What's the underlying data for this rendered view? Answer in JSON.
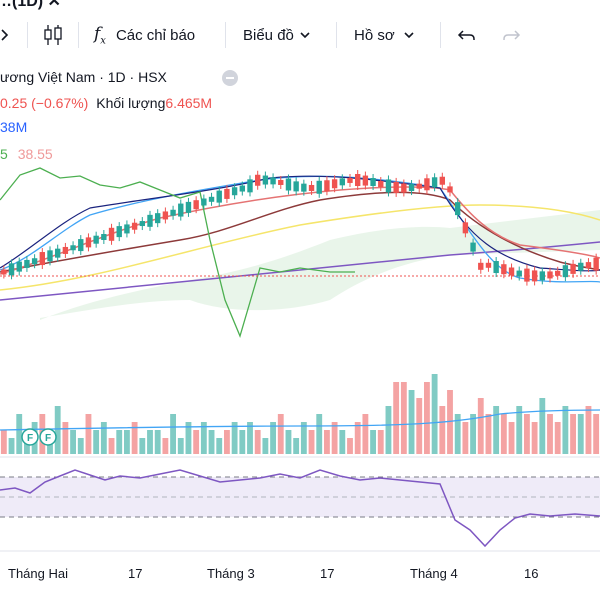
{
  "toolbar": {
    "top_partial": "…(1D) ✕",
    "indicators_label": "Các chỉ báo",
    "chart_label": "Biểu đồ",
    "profile_label": "Hồ sơ",
    "icons": [
      "chevron-right-icon",
      "candlestick-icon",
      "fx-icon",
      "chevron-down-icon",
      "undo-icon",
      "redo-icon"
    ]
  },
  "symbol": {
    "title": "ương Việt Nam · 1D · HSX",
    "change": "0.25 (−0.67%)",
    "volume_label": "Khối lượng",
    "volume_value": "6.465M",
    "volume_ma": "38M",
    "ind_prefix": "5",
    "ind_value": "38.55"
  },
  "xaxis": {
    "labels": [
      "Tháng Hai",
      "17",
      "Tháng 3",
      "17",
      "Tháng 4",
      "16"
    ]
  },
  "colors": {
    "up": "#26a69a",
    "down": "#ef5350",
    "ichimoku": "#4caf50",
    "rsi": "#7e57c2"
  },
  "chart_data": {
    "type": "line",
    "title": "",
    "candles": {
      "up": [
        0,
        1,
        1,
        1,
        1,
        0,
        1,
        1,
        0,
        1,
        1,
        0,
        1,
        1,
        0,
        1,
        1,
        0,
        1,
        1,
        1,
        0,
        1,
        1,
        1,
        0,
        1,
        1,
        1,
        0,
        1,
        1,
        1,
        0,
        1,
        1,
        0,
        1,
        1,
        1,
        0,
        1,
        0,
        0,
        1,
        0,
        0,
        0,
        1,
        0,
        1,
        0,
        0,
        1,
        0,
        0,
        1,
        0,
        0,
        1,
        0,
        1,
        0,
        0,
        1,
        0,
        0,
        1,
        0,
        0,
        1,
        0,
        0,
        1,
        0,
        1,
        0,
        0
      ]
    },
    "volume": [
      3,
      2,
      5,
      2,
      4,
      5,
      3,
      6,
      4,
      3,
      2,
      5,
      3,
      4,
      2,
      3,
      3,
      4,
      2,
      3,
      3,
      2,
      5,
      2,
      4,
      3,
      4,
      3,
      2,
      3,
      4,
      3,
      4,
      3,
      2,
      4,
      5,
      3,
      2,
      4,
      3,
      5,
      3,
      4,
      3,
      2,
      4,
      5,
      3,
      3,
      6,
      9,
      9,
      8,
      7,
      9,
      10,
      6,
      8,
      5,
      4,
      5,
      7,
      5,
      6,
      5,
      4,
      6,
      5,
      4,
      7,
      5,
      4,
      6,
      5,
      5,
      6,
      5
    ],
    "rsi_levels": [
      70,
      50,
      30
    ]
  }
}
